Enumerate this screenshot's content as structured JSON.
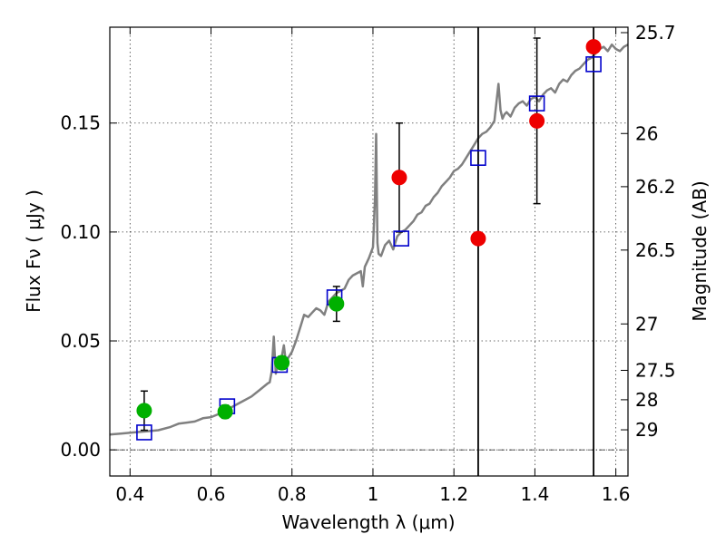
{
  "chart_data": {
    "type": "scatter",
    "title": "",
    "xlabel": "Wavelength  λ (μm)",
    "ylabel": "Flux  Fν  ( μJy )",
    "ylabel_right": "Magnitude (AB)",
    "xlim": [
      0.35,
      1.63
    ],
    "ylim": [
      -0.012,
      0.194
    ],
    "x_ticks": [
      0.4,
      0.6,
      0.8,
      1.0,
      1.2,
      1.4,
      1.6
    ],
    "x_tick_labels": [
      "0.4",
      "0.6",
      "0.8",
      "1",
      "1.2",
      "1.4",
      "1.6"
    ],
    "y_ticks": [
      0.0,
      0.05,
      0.1,
      0.15
    ],
    "y_tick_labels": [
      "0.00",
      "0.05",
      "0.10",
      "0.15"
    ],
    "right_ticks": [
      {
        "label": "25.7",
        "flux": 0.1915
      },
      {
        "label": "26",
        "flux": 0.1452
      },
      {
        "label": "26.2",
        "flux": 0.1208
      },
      {
        "label": "26.5",
        "flux": 0.0917
      },
      {
        "label": "27",
        "flux": 0.0578
      },
      {
        "label": "27.5",
        "flux": 0.0365
      },
      {
        "label": "28",
        "flux": 0.023
      },
      {
        "label": "29",
        "flux": 0.0092
      }
    ],
    "grid": true,
    "zero_line": true,
    "vertical_lines": [
      1.26,
      1.545
    ],
    "model_spectrum": {
      "color": "#808080",
      "x": [
        0.35,
        0.38,
        0.41,
        0.44,
        0.47,
        0.5,
        0.52,
        0.54,
        0.56,
        0.58,
        0.6,
        0.62,
        0.64,
        0.66,
        0.68,
        0.7,
        0.72,
        0.74,
        0.745,
        0.75,
        0.755,
        0.76,
        0.765,
        0.77,
        0.775,
        0.78,
        0.785,
        0.79,
        0.8,
        0.81,
        0.82,
        0.83,
        0.84,
        0.85,
        0.86,
        0.87,
        0.88,
        0.89,
        0.9,
        0.91,
        0.92,
        0.93,
        0.94,
        0.95,
        0.96,
        0.97,
        0.975,
        0.98,
        0.99,
        1.0,
        1.005,
        1.008,
        1.011,
        1.014,
        1.02,
        1.03,
        1.04,
        1.05,
        1.06,
        1.07,
        1.08,
        1.09,
        1.1,
        1.11,
        1.12,
        1.13,
        1.14,
        1.15,
        1.16,
        1.17,
        1.18,
        1.19,
        1.2,
        1.21,
        1.22,
        1.23,
        1.24,
        1.25,
        1.26,
        1.27,
        1.28,
        1.29,
        1.3,
        1.31,
        1.315,
        1.32,
        1.325,
        1.33,
        1.34,
        1.35,
        1.36,
        1.37,
        1.38,
        1.39,
        1.4,
        1.41,
        1.42,
        1.43,
        1.44,
        1.45,
        1.46,
        1.47,
        1.48,
        1.49,
        1.5,
        1.51,
        1.52,
        1.53,
        1.54,
        1.55,
        1.56,
        1.57,
        1.58,
        1.59,
        1.6,
        1.61,
        1.62,
        1.63
      ],
      "y": [
        0.007,
        0.0075,
        0.008,
        0.0085,
        0.009,
        0.0105,
        0.012,
        0.0125,
        0.013,
        0.0145,
        0.015,
        0.0165,
        0.0185,
        0.0205,
        0.0225,
        0.0245,
        0.0275,
        0.0305,
        0.031,
        0.036,
        0.052,
        0.035,
        0.04,
        0.038,
        0.043,
        0.048,
        0.04,
        0.042,
        0.045,
        0.05,
        0.056,
        0.062,
        0.061,
        0.063,
        0.065,
        0.064,
        0.062,
        0.068,
        0.07,
        0.072,
        0.073,
        0.074,
        0.078,
        0.08,
        0.081,
        0.082,
        0.075,
        0.084,
        0.088,
        0.093,
        0.115,
        0.145,
        0.095,
        0.09,
        0.089,
        0.094,
        0.096,
        0.092,
        0.098,
        0.1,
        0.101,
        0.103,
        0.105,
        0.108,
        0.109,
        0.112,
        0.113,
        0.116,
        0.118,
        0.121,
        0.123,
        0.125,
        0.128,
        0.129,
        0.131,
        0.134,
        0.137,
        0.14,
        0.143,
        0.145,
        0.146,
        0.148,
        0.151,
        0.168,
        0.156,
        0.152,
        0.154,
        0.155,
        0.153,
        0.157,
        0.159,
        0.16,
        0.158,
        0.161,
        0.162,
        0.16,
        0.163,
        0.165,
        0.166,
        0.164,
        0.168,
        0.17,
        0.169,
        0.172,
        0.174,
        0.175,
        0.177,
        0.179,
        0.18,
        0.182,
        0.184,
        0.185,
        0.183,
        0.186,
        0.184,
        0.183,
        0.185,
        0.186
      ]
    },
    "series": [
      {
        "marker": "circle",
        "color": "#00b000",
        "points": [
          {
            "x": 0.435,
            "y": 0.018,
            "err_lo": 0.009,
            "err_hi": 0.009
          },
          {
            "x": 0.635,
            "y": 0.0175,
            "err_lo": 0.003,
            "err_hi": 0.003
          },
          {
            "x": 0.775,
            "y": 0.04,
            "err_lo": 0.003,
            "err_hi": 0.003
          },
          {
            "x": 0.91,
            "y": 0.067,
            "err_lo": 0.008,
            "err_hi": 0.008
          }
        ]
      },
      {
        "marker": "circle",
        "color": "#ee0000",
        "points": [
          {
            "x": 1.065,
            "y": 0.125,
            "err_lo": 0.025,
            "err_hi": 0.025
          },
          {
            "x": 1.26,
            "y": 0.097,
            "err_lo": null,
            "err_hi": null
          },
          {
            "x": 1.405,
            "y": 0.151,
            "err_lo": 0.038,
            "err_hi": 0.038
          },
          {
            "x": 1.545,
            "y": 0.185,
            "err_lo": null,
            "err_hi": null
          }
        ]
      },
      {
        "marker": "square",
        "color": "#0000cc",
        "points": [
          {
            "x": 0.435,
            "y": 0.008
          },
          {
            "x": 0.64,
            "y": 0.02
          },
          {
            "x": 0.77,
            "y": 0.039
          },
          {
            "x": 0.905,
            "y": 0.07
          },
          {
            "x": 1.07,
            "y": 0.097
          },
          {
            "x": 1.26,
            "y": 0.134
          },
          {
            "x": 1.405,
            "y": 0.159
          },
          {
            "x": 1.545,
            "y": 0.177
          }
        ]
      }
    ]
  }
}
